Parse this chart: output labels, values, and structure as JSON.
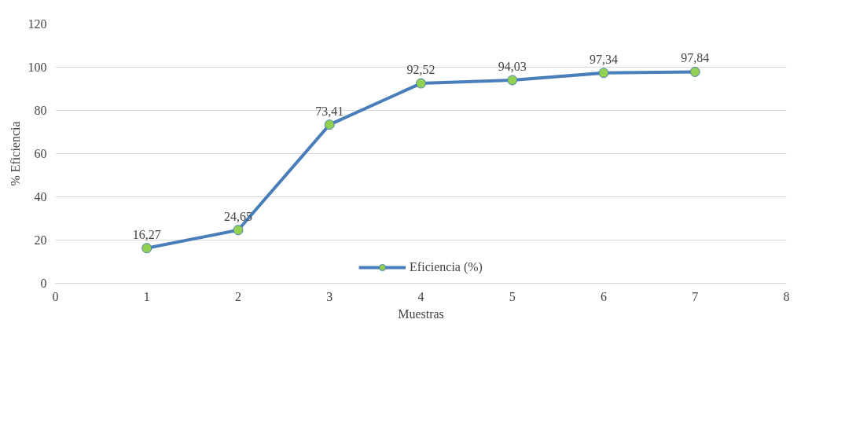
{
  "chart_data": {
    "type": "line",
    "xlabel": "Muestras",
    "ylabel": "% Eficiencia",
    "x": [
      1,
      2,
      3,
      4,
      5,
      6,
      7
    ],
    "series": [
      {
        "name": "Eficiencia (%)",
        "color": "#4a7ebb",
        "values": [
          16.27,
          24.65,
          73.41,
          92.52,
          94.03,
          97.34,
          97.84
        ],
        "value_labels": [
          "16,27",
          "24,65",
          "73,41",
          "92,52",
          "94,03",
          "97,34",
          "97,84"
        ]
      }
    ],
    "xlim": [
      0,
      8
    ],
    "xticks": [
      0,
      1,
      2,
      3,
      4,
      5,
      6,
      7,
      8
    ],
    "ylim": [
      0,
      120
    ],
    "yticks": [
      0,
      20,
      40,
      60,
      80,
      100,
      120
    ],
    "grid": "y",
    "legend": "bottom",
    "marker": "circle",
    "line_style": "solid"
  }
}
